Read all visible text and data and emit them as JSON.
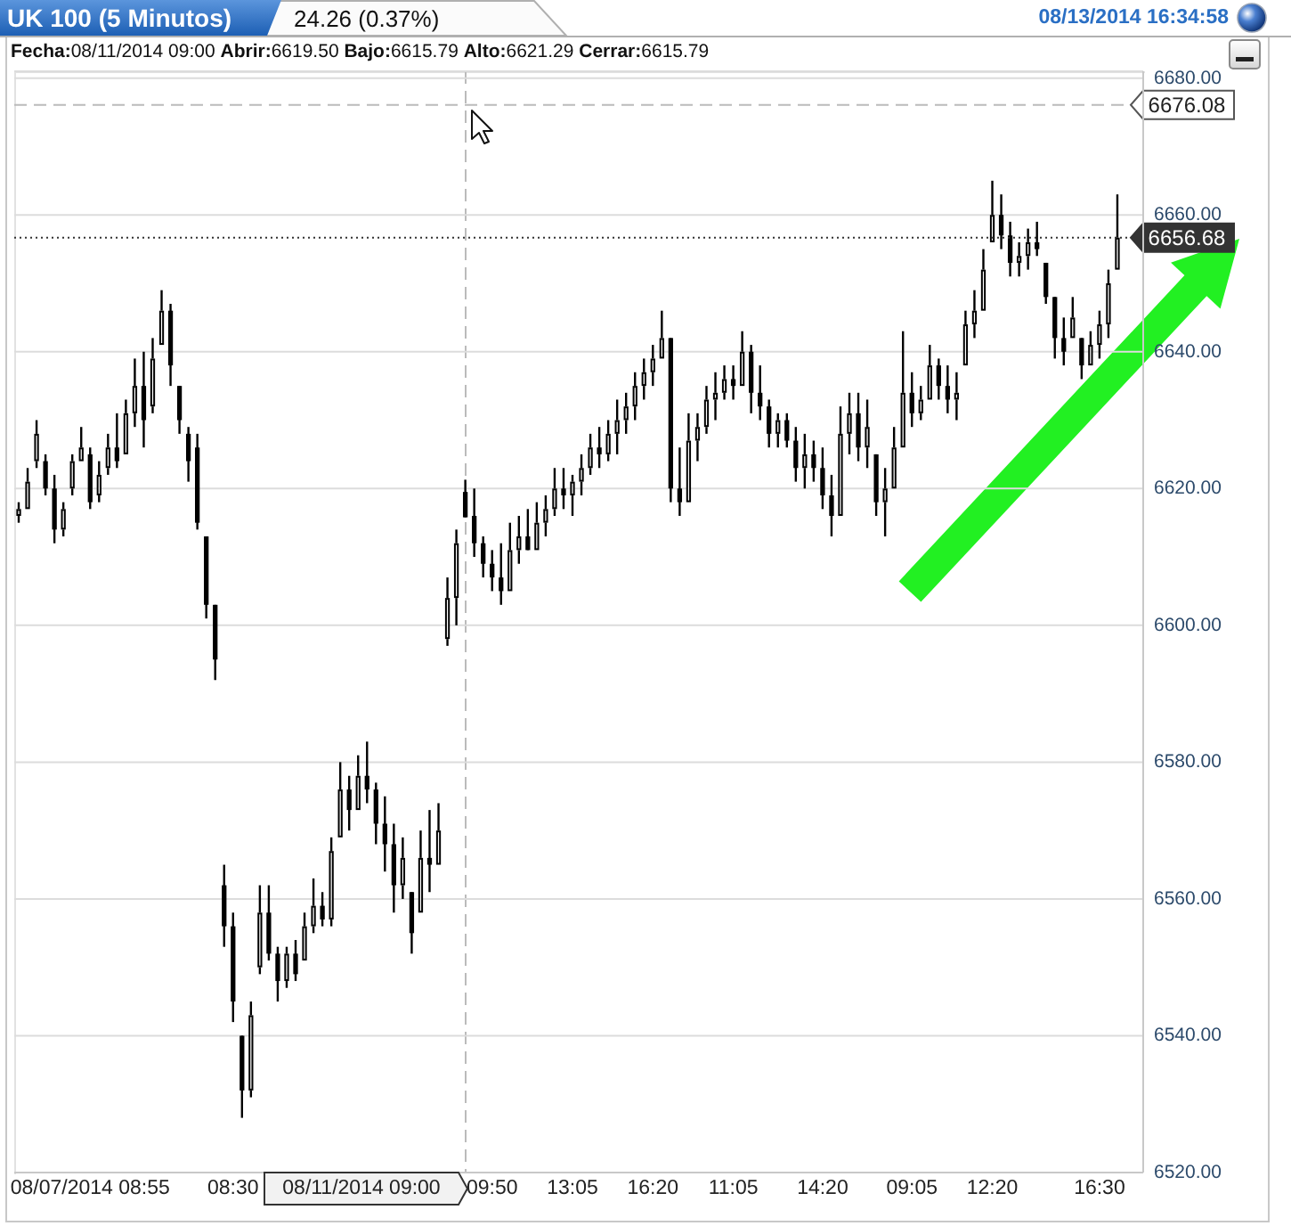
{
  "chart_data": {
    "type": "candlestick",
    "title": "UK 100 (5 Minutos)",
    "subtitle": "24.26 (0.37%)",
    "annotations": [
      "08/13/2014 16:34:58",
      "Fecha:08/11/2014 09:00 Abrir:6619.50 Bajo:6615.79 Alto:6621.29 Cerrar:6615.79",
      "08/11/2014 09:00"
    ],
    "categories": [
      null,
      null,
      null,
      null,
      null,
      null,
      null,
      null,
      "08/07/2014 08:55",
      null,
      null,
      null,
      null,
      null,
      null,
      null,
      null,
      null,
      null,
      null,
      null,
      null,
      null,
      null,
      "08:30",
      null,
      null,
      null,
      null,
      null,
      null,
      null,
      null,
      null,
      null,
      null,
      null,
      null,
      null,
      null,
      null,
      null,
      null,
      null,
      null,
      null,
      null,
      null,
      null,
      null,
      null,
      null,
      null,
      "09:50",
      null,
      null,
      null,
      null,
      null,
      null,
      null,
      null,
      "13:05",
      null,
      null,
      null,
      null,
      null,
      null,
      null,
      null,
      "16:20",
      null,
      null,
      null,
      null,
      null,
      null,
      null,
      null,
      "11:05",
      null,
      null,
      null,
      null,
      null,
      null,
      null,
      null,
      null,
      "14:20",
      null,
      null,
      null,
      null,
      null,
      null,
      null,
      null,
      null,
      "09:05",
      null,
      null,
      null,
      null,
      null,
      null,
      null,
      null,
      "12:20",
      null,
      null,
      null,
      null,
      null,
      null,
      null,
      null,
      null,
      null,
      null,
      "16:30",
      null,
      null
    ],
    "ohlc": [
      [
        6616,
        6618,
        6615,
        6617
      ],
      [
        6617,
        6623,
        6617,
        6621
      ],
      [
        6624,
        6630,
        6623,
        6628
      ],
      [
        6624,
        6625,
        6619,
        6620
      ],
      [
        6620,
        6622,
        6612,
        6614
      ],
      [
        6614,
        6618,
        6613,
        6617
      ],
      [
        6620,
        6625,
        6619,
        6624
      ],
      [
        6624,
        6629,
        6624,
        6626
      ],
      [
        6625,
        6626,
        6617,
        6618
      ],
      [
        6619,
        6624,
        6618,
        6622
      ],
      [
        6623,
        6628,
        6622,
        6626
      ],
      [
        6626,
        6631,
        6623,
        6624
      ],
      [
        6625,
        6633,
        6625,
        6631
      ],
      [
        6631,
        6639,
        6629,
        6635
      ],
      [
        6635,
        6640,
        6626,
        6630
      ],
      [
        6632,
        6642,
        6631,
        6639
      ],
      [
        6641,
        6649,
        6641,
        6646
      ],
      [
        6646,
        6647,
        6635,
        6638
      ],
      [
        6635,
        6635,
        6628,
        6630
      ],
      [
        6628,
        6629,
        6621,
        6624
      ],
      [
        6626,
        6628,
        6614,
        6615
      ],
      [
        6613,
        6613,
        6601,
        6603
      ],
      [
        6603,
        6603,
        6592,
        6595
      ],
      [
        6562,
        6565,
        6553,
        6556
      ],
      [
        6556,
        6558,
        6542,
        6545
      ],
      [
        6540,
        6540,
        6528,
        6532
      ],
      [
        6532,
        6545,
        6531,
        6543
      ],
      [
        6550,
        6562,
        6549,
        6558
      ],
      [
        6558,
        6562,
        6551,
        6552
      ],
      [
        6552,
        6553,
        6545,
        6548
      ],
      [
        6548,
        6553,
        6547,
        6552
      ],
      [
        6552,
        6554,
        6548,
        6549
      ],
      [
        6551,
        6558,
        6551,
        6556
      ],
      [
        6556,
        6563,
        6555,
        6559
      ],
      [
        6559,
        6561,
        6556,
        6557
      ],
      [
        6557,
        6569,
        6556,
        6567
      ],
      [
        6569,
        6580,
        6569,
        6576
      ],
      [
        6576,
        6578,
        6570,
        6573
      ],
      [
        6573,
        6581,
        6573,
        6578
      ],
      [
        6578,
        6583,
        6574,
        6576
      ],
      [
        6576,
        6577,
        6568,
        6571
      ],
      [
        6571,
        6575,
        6564,
        6568
      ],
      [
        6568,
        6571,
        6558,
        6562
      ],
      [
        6562,
        6569,
        6560,
        6566
      ],
      [
        6561,
        6561,
        6552,
        6555
      ],
      [
        6558,
        6570,
        6558,
        6566
      ],
      [
        6566,
        6573,
        6561,
        6565
      ],
      [
        6565,
        6574,
        6565,
        6570
      ],
      [
        6598,
        6607,
        6597,
        6604
      ],
      [
        6604,
        6614,
        6600,
        6612
      ],
      [
        6619.5,
        6621.29,
        6615.79,
        6615.79
      ],
      [
        6616,
        6620,
        6610,
        6612
      ],
      [
        6612,
        6613,
        6607,
        6609
      ],
      [
        6609,
        6611,
        6605,
        6607
      ],
      [
        6607,
        6612,
        6603,
        6605
      ],
      [
        6605,
        6615,
        6605,
        6611
      ],
      [
        6611,
        6616,
        6609,
        6613
      ],
      [
        6613,
        6617,
        6611,
        6611
      ],
      [
        6611,
        6618,
        6611,
        6615
      ],
      [
        6615,
        6619,
        6613,
        6617
      ],
      [
        6617,
        6623,
        6616,
        6620
      ],
      [
        6620,
        6623,
        6617,
        6619
      ],
      [
        6619,
        6622,
        6616,
        6621
      ],
      [
        6621,
        6625,
        6619,
        6623
      ],
      [
        6623,
        6628,
        6622,
        6626
      ],
      [
        6626,
        6629,
        6623,
        6625
      ],
      [
        6625,
        6630,
        6624,
        6628
      ],
      [
        6628,
        6633,
        6625,
        6630
      ],
      [
        6630,
        6634,
        6628,
        6632
      ],
      [
        6632,
        6637,
        6630,
        6635
      ],
      [
        6635,
        6639,
        6633,
        6637
      ],
      [
        6637,
        6641,
        6635,
        6639
      ],
      [
        6639,
        6646,
        6639,
        6642
      ],
      [
        6642,
        6642,
        6618,
        6620
      ],
      [
        6620,
        6626,
        6616,
        6618
      ],
      [
        6618,
        6631,
        6618,
        6627
      ],
      [
        6627,
        6631,
        6624,
        6629
      ],
      [
        6629,
        6635,
        6628,
        6633
      ],
      [
        6633,
        6637,
        6630,
        6634
      ],
      [
        6634,
        6638,
        6633,
        6636
      ],
      [
        6636,
        6638,
        6633,
        6635
      ],
      [
        6635,
        6643,
        6635,
        6640
      ],
      [
        6640,
        6641,
        6631,
        6634
      ],
      [
        6634,
        6638,
        6630,
        6632
      ],
      [
        6632,
        6633,
        6626,
        6628
      ],
      [
        6628,
        6631,
        6626,
        6630
      ],
      [
        6630,
        6631,
        6626,
        6627
      ],
      [
        6627,
        6629,
        6621,
        6623
      ],
      [
        6623,
        6628,
        6620,
        6625
      ],
      [
        6625,
        6627,
        6621,
        6623
      ],
      [
        6623,
        6626,
        6617,
        6619
      ],
      [
        6619,
        6622,
        6613,
        6616
      ],
      [
        6616,
        6632,
        6616,
        6628
      ],
      [
        6628,
        6634,
        6625,
        6631
      ],
      [
        6631,
        6634,
        6624,
        6626
      ],
      [
        6626,
        6633,
        6623,
        6629
      ],
      [
        6625,
        6625,
        6616,
        6618
      ],
      [
        6618,
        6623,
        6613,
        6620
      ],
      [
        6620,
        6629,
        6620,
        6626
      ],
      [
        6626,
        6643,
        6626,
        6634
      ],
      [
        6634,
        6637,
        6629,
        6631
      ],
      [
        6631,
        6635,
        6630,
        6633
      ],
      [
        6633,
        6641,
        6633,
        6638
      ],
      [
        6638,
        6639,
        6633,
        6635
      ],
      [
        6635,
        6638,
        6631,
        6633
      ],
      [
        6633,
        6637,
        6630,
        6634
      ],
      [
        6638,
        6646,
        6638,
        6644
      ],
      [
        6644,
        6649,
        6642,
        6646
      ],
      [
        6646,
        6655,
        6646,
        6652
      ],
      [
        6656,
        6665,
        6656,
        6660
      ],
      [
        6660,
        6663,
        6655,
        6657
      ],
      [
        6657,
        6659,
        6651,
        6653
      ],
      [
        6653,
        6656,
        6651,
        6654
      ],
      [
        6654,
        6658,
        6652,
        6656
      ],
      [
        6656,
        6659,
        6654,
        6655
      ],
      [
        6653,
        6653,
        6647,
        6648
      ],
      [
        6648,
        6648,
        6639,
        6642
      ],
      [
        6642,
        6645,
        6638,
        6640
      ],
      [
        6642,
        6648,
        6642,
        6645
      ],
      [
        6642,
        6642,
        6636,
        6638
      ],
      [
        6638,
        6643,
        6638,
        6641
      ],
      [
        6641,
        6646,
        6639,
        6644
      ],
      [
        6644,
        6652,
        6642,
        6650
      ],
      [
        6652,
        6663,
        6652,
        6656.68
      ]
    ],
    "color": "#000000",
    "ylim": [
      6520,
      6681
    ],
    "yticks": [
      {
        "value": 6520,
        "label": "6520.00"
      },
      {
        "value": 6540,
        "label": "6540.00"
      },
      {
        "value": 6560,
        "label": "6560.00"
      },
      {
        "value": 6580,
        "label": "6580.00"
      },
      {
        "value": 6600,
        "label": "6600.00"
      },
      {
        "value": 6620,
        "label": "6620.00"
      },
      {
        "value": 6640,
        "label": "6640.00"
      },
      {
        "value": 6660,
        "label": "6660.00"
      },
      {
        "value": 6680,
        "label": "6680.00"
      }
    ],
    "grid": "y",
    "ref_lines": [
      {
        "axis": "y",
        "value": 6676.08,
        "label": "6676.08",
        "line_style": "dashed",
        "color": "#bbbbbb"
      },
      {
        "axis": "y",
        "value": 6656.68,
        "label": "6656.68",
        "line_style": "dotted",
        "color": "#333333"
      }
    ]
  }
}
